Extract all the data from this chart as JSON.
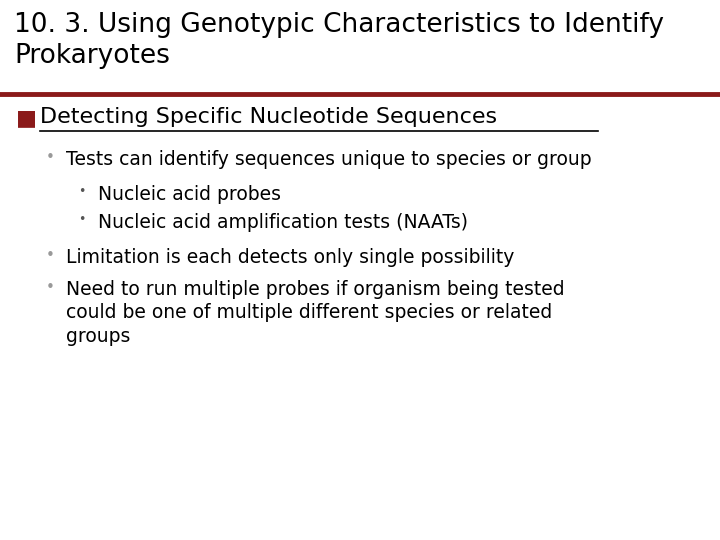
{
  "title_line1": "10. 3. Using Genotypic Characteristics to Identify",
  "title_line2": "Prokaryotes",
  "title_fontsize": 19,
  "title_color": "#000000",
  "divider_color": "#8B1A1A",
  "background_color": "#FFFFFF",
  "section_bullet_color": "#8B1A1A",
  "section_title": "Detecting Specific Nucleotide Sequences",
  "section_title_fontsize": 16,
  "bullet_fontsize": 13.5,
  "items": [
    {
      "level": 1,
      "text": "Tests can identify sequences unique to species or group"
    },
    {
      "level": 2,
      "text": "Nucleic acid probes"
    },
    {
      "level": 2,
      "text": "Nucleic acid amplification tests (NAATs)"
    },
    {
      "level": 1,
      "text": "Limitation is each detects only single possibility"
    },
    {
      "level": 1,
      "text": "Need to run multiple probes if organism being tested\ncould be one of multiple different species or related\ngroups"
    }
  ]
}
